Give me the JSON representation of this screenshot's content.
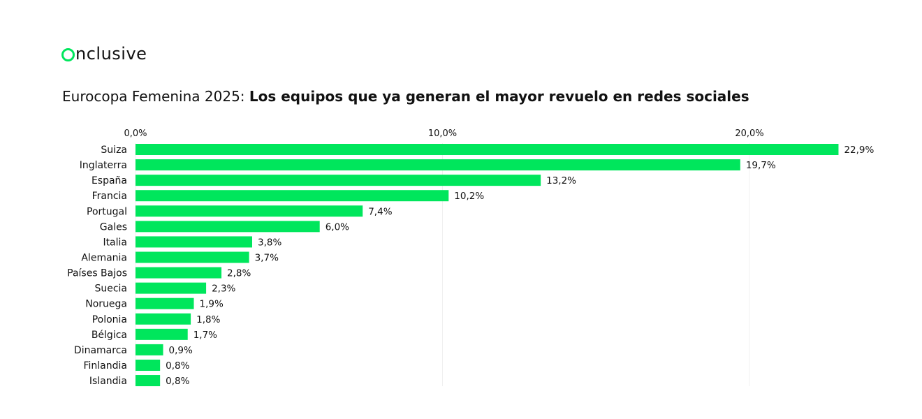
{
  "logo": {
    "text": "nclusive",
    "accent": "#00e65c"
  },
  "title": {
    "lead": "Eurocopa Femenina 2025: ",
    "bold": "Los equipos que ya generan el mayor revuelo en redes sociales"
  },
  "colors": {
    "bar": "#00e65c",
    "text": "#111111"
  },
  "chart_data": {
    "type": "bar",
    "orientation": "horizontal",
    "categories": [
      "Suiza",
      "Inglaterra",
      "España",
      "Francia",
      "Portugal",
      "Gales",
      "Italia",
      "Alemania",
      "Países Bajos",
      "Suecia",
      "Noruega",
      "Polonia",
      "Bélgica",
      "Dinamarca",
      "Finlandia",
      "Islandia"
    ],
    "values": [
      22.9,
      19.7,
      13.2,
      10.2,
      7.4,
      6.0,
      3.8,
      3.7,
      2.8,
      2.3,
      1.9,
      1.8,
      1.7,
      0.9,
      0.8,
      0.8
    ],
    "value_labels": [
      "22,9%",
      "19,7%",
      "13,2%",
      "10,2%",
      "7,4%",
      "6,0%",
      "3,8%",
      "3,7%",
      "2,8%",
      "2,3%",
      "1,9%",
      "1,8%",
      "1,7%",
      "0,9%",
      "0,8%",
      "0,8%"
    ],
    "xticks": [
      0,
      10,
      20
    ],
    "xtick_labels": [
      "0,0%",
      "10,0%",
      "20,0%"
    ],
    "xaxis_position": "top",
    "grid": true,
    "legend": false
  }
}
